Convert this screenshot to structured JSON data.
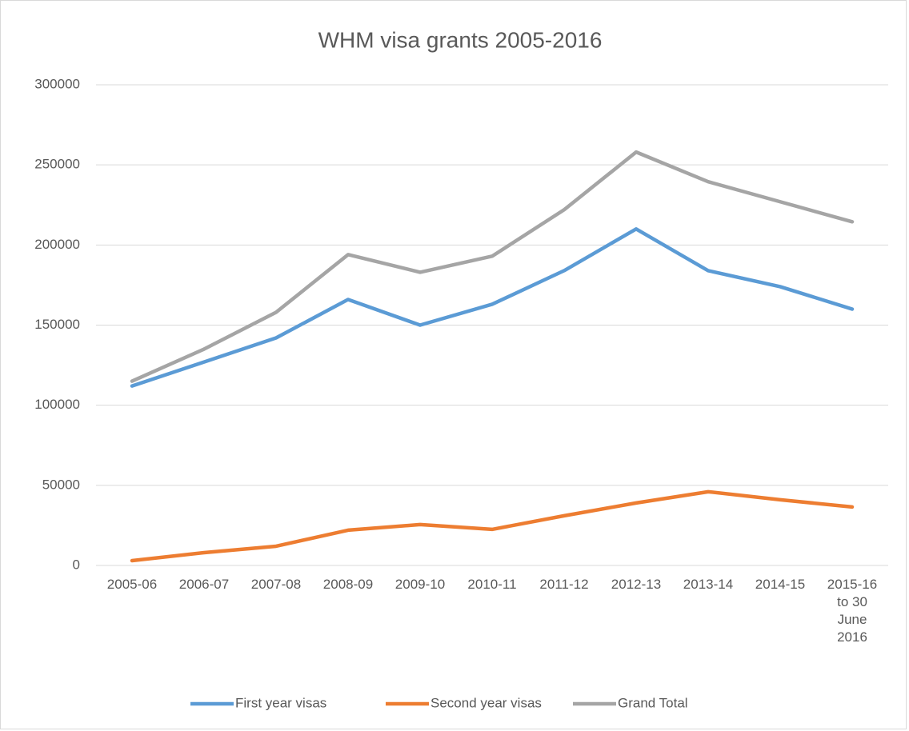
{
  "chart_data": {
    "type": "line",
    "title": "WHM visa grants 2005-2016",
    "categories": [
      "2005-06",
      "2006-07",
      "2007-08",
      "2008-09",
      "2009-10",
      "2010-11",
      "2011-12",
      "2012-13",
      "2013-14",
      "2014-15",
      "2015-16 to 30 June 2016"
    ],
    "series": [
      {
        "name": "First year visas",
        "color": "#5b9bd5",
        "values": [
          112000,
          127000,
          142000,
          166000,
          150000,
          163000,
          184000,
          210000,
          184000,
          174000,
          160000
        ]
      },
      {
        "name": "Second year visas",
        "color": "#ed7d31",
        "values": [
          3000,
          8000,
          12000,
          22000,
          25500,
          22500,
          31000,
          39000,
          46000,
          41000,
          36500
        ]
      },
      {
        "name": "Grand Total",
        "color": "#a5a5a5",
        "values": [
          115000,
          135000,
          158000,
          194000,
          183000,
          193000,
          222000,
          258000,
          239500,
          227000,
          214500
        ]
      }
    ],
    "ylim": [
      0,
      300000
    ],
    "yticks": [
      0,
      50000,
      100000,
      150000,
      200000,
      250000,
      300000
    ],
    "grid": true,
    "legend": "bottom"
  }
}
